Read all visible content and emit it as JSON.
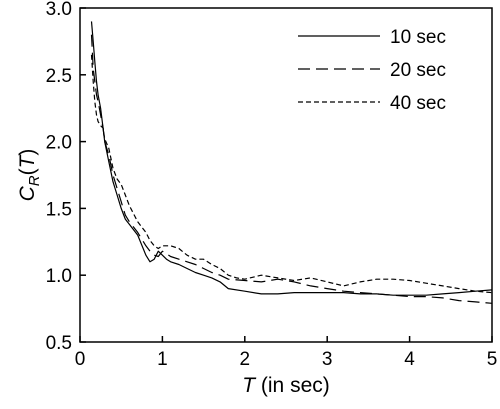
{
  "chart_data": {
    "type": "line",
    "title": "",
    "xlabel": {
      "italic": "T",
      "rest": " (in sec)"
    },
    "ylabel": {
      "base": "C",
      "sub": "R",
      "open": "(",
      "arg": "T",
      "close": ")"
    },
    "xlim": [
      0,
      5
    ],
    "ylim": [
      0.5,
      3.0
    ],
    "x_ticks": [
      0,
      1,
      2,
      3,
      4,
      5
    ],
    "x_tick_labels": [
      "0",
      "1",
      "2",
      "3",
      "4",
      "5"
    ],
    "y_ticks": [
      0.5,
      1.0,
      1.5,
      2.0,
      2.5,
      3.0
    ],
    "y_tick_labels": [
      "0.5",
      "1.0",
      "1.5",
      "2.0",
      "2.5",
      "3.0"
    ],
    "grid": false,
    "legend_position": "top-right",
    "series": [
      {
        "name": "10 sec",
        "style": "solid",
        "x": [
          0.14,
          0.16,
          0.18,
          0.2,
          0.22,
          0.25,
          0.28,
          0.3,
          0.35,
          0.4,
          0.45,
          0.5,
          0.55,
          0.6,
          0.7,
          0.8,
          0.85,
          0.9,
          0.95,
          1.0,
          1.05,
          1.1,
          1.2,
          1.3,
          1.4,
          1.5,
          1.6,
          1.7,
          1.8,
          2.0,
          2.2,
          2.4,
          2.6,
          2.8,
          3.0,
          3.2,
          3.4,
          3.6,
          3.8,
          4.0,
          4.2,
          4.4,
          4.6,
          4.8,
          5.0
        ],
        "y": [
          2.9,
          2.75,
          2.6,
          2.45,
          2.35,
          2.25,
          2.1,
          2.0,
          1.85,
          1.7,
          1.6,
          1.5,
          1.42,
          1.38,
          1.3,
          1.15,
          1.1,
          1.12,
          1.18,
          1.15,
          1.12,
          1.1,
          1.08,
          1.05,
          1.02,
          1.0,
          0.98,
          0.95,
          0.9,
          0.88,
          0.86,
          0.86,
          0.87,
          0.87,
          0.87,
          0.87,
          0.86,
          0.86,
          0.85,
          0.85,
          0.85,
          0.86,
          0.87,
          0.88,
          0.89
        ]
      },
      {
        "name": "20 sec",
        "style": "dashed",
        "x": [
          0.14,
          0.16,
          0.18,
          0.2,
          0.22,
          0.25,
          0.28,
          0.3,
          0.35,
          0.4,
          0.45,
          0.5,
          0.55,
          0.6,
          0.7,
          0.8,
          0.85,
          0.9,
          0.95,
          1.0,
          1.05,
          1.1,
          1.2,
          1.3,
          1.4,
          1.5,
          1.6,
          1.7,
          1.8,
          2.0,
          2.2,
          2.4,
          2.6,
          2.8,
          3.0,
          3.2,
          3.4,
          3.6,
          3.8,
          4.0,
          4.2,
          4.4,
          4.6,
          4.8,
          5.0
        ],
        "y": [
          2.8,
          2.55,
          2.45,
          2.35,
          2.3,
          2.2,
          2.1,
          2.0,
          1.9,
          1.75,
          1.65,
          1.55,
          1.45,
          1.4,
          1.32,
          1.22,
          1.18,
          1.15,
          1.14,
          1.18,
          1.16,
          1.14,
          1.12,
          1.1,
          1.08,
          1.05,
          1.02,
          1.0,
          0.97,
          0.96,
          0.95,
          0.97,
          0.95,
          0.92,
          0.9,
          0.88,
          0.87,
          0.86,
          0.85,
          0.84,
          0.84,
          0.83,
          0.81,
          0.8,
          0.79
        ]
      },
      {
        "name": "40 sec",
        "style": "short-dashed",
        "x": [
          0.14,
          0.16,
          0.18,
          0.2,
          0.22,
          0.25,
          0.28,
          0.3,
          0.35,
          0.4,
          0.45,
          0.5,
          0.55,
          0.6,
          0.7,
          0.8,
          0.85,
          0.9,
          0.95,
          1.0,
          1.1,
          1.2,
          1.3,
          1.4,
          1.5,
          1.6,
          1.7,
          1.8,
          1.9,
          2.0,
          2.2,
          2.4,
          2.6,
          2.8,
          3.0,
          3.2,
          3.4,
          3.6,
          3.8,
          4.0,
          4.2,
          4.4,
          4.6,
          4.8,
          5.0
        ],
        "y": [
          2.65,
          2.45,
          2.3,
          2.2,
          2.15,
          2.12,
          2.1,
          2.02,
          1.95,
          1.8,
          1.72,
          1.68,
          1.6,
          1.52,
          1.4,
          1.32,
          1.26,
          1.22,
          1.2,
          1.22,
          1.22,
          1.2,
          1.15,
          1.12,
          1.12,
          1.08,
          1.05,
          1.0,
          0.98,
          0.97,
          1.0,
          0.98,
          0.96,
          0.98,
          0.95,
          0.92,
          0.95,
          0.97,
          0.97,
          0.96,
          0.94,
          0.92,
          0.9,
          0.88,
          0.87
        ]
      }
    ]
  }
}
